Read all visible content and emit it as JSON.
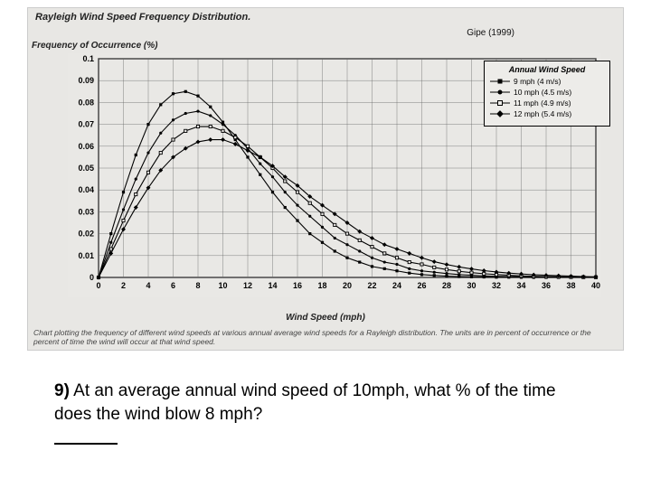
{
  "chart": {
    "type": "line",
    "title": "Rayleigh Wind Speed Frequency Distribution.",
    "citation": "Gipe (1999)",
    "ylabel": "Frequency of Occurrence (%)",
    "xlabel": "Wind Speed (mph)",
    "caption": "Chart plotting the frequency of different wind speeds at various annual average wind speeds for a Rayleigh distribution. The units are in percent of occurrence or the percent of time the wind will occur at that wind speed.",
    "background_color": "#e8e7e4",
    "grid_color": "#666666",
    "axis_color": "#000000",
    "xlim": [
      0,
      40
    ],
    "ylim": [
      0,
      0.1
    ],
    "xtick_step": 2,
    "ytick_step": 0.01,
    "line_width": 1.1,
    "marker_size": 3.2,
    "legend": {
      "title": "Annual Wind Speed",
      "position": "top-right",
      "items": [
        {
          "label": "9 mph (4 m/s)",
          "marker": "filled-square"
        },
        {
          "label": "10 mph (4.5 m/s)",
          "marker": "filled-circle"
        },
        {
          "label": "11 mph (4.9 m/s)",
          "marker": "open-square"
        },
        {
          "label": "12 mph (5.4 m/s)",
          "marker": "filled-diamond"
        }
      ]
    },
    "series": [
      {
        "name": "9 mph (4 m/s)",
        "color": "#000000",
        "marker": "filled-square",
        "x": [
          0,
          1,
          2,
          3,
          4,
          5,
          6,
          7,
          8,
          9,
          10,
          11,
          12,
          13,
          14,
          15,
          16,
          17,
          18,
          19,
          20,
          21,
          22,
          23,
          24,
          25,
          26,
          27,
          28,
          29,
          30,
          31,
          32,
          33,
          34,
          35,
          36,
          37,
          38,
          39,
          40
        ],
        "y": [
          0,
          0.02,
          0.039,
          0.056,
          0.07,
          0.079,
          0.084,
          0.085,
          0.083,
          0.078,
          0.071,
          0.063,
          0.055,
          0.047,
          0.039,
          0.032,
          0.026,
          0.02,
          0.016,
          0.012,
          0.009,
          0.007,
          0.005,
          0.004,
          0.003,
          0.002,
          0.0013,
          0.0009,
          0.0006,
          0.0004,
          0.0003,
          0.0002,
          0.0001,
          0.0001,
          5e-05,
          3e-05,
          2e-05,
          1e-05,
          0,
          0,
          0
        ]
      },
      {
        "name": "10 mph (4.5 m/s)",
        "color": "#000000",
        "marker": "filled-circle",
        "x": [
          0,
          1,
          2,
          3,
          4,
          5,
          6,
          7,
          8,
          9,
          10,
          11,
          12,
          13,
          14,
          15,
          16,
          17,
          18,
          19,
          20,
          21,
          22,
          23,
          24,
          25,
          26,
          27,
          28,
          29,
          30,
          31,
          32,
          33,
          34,
          35,
          36,
          37,
          38,
          39,
          40
        ],
        "y": [
          0,
          0.016,
          0.031,
          0.045,
          0.057,
          0.066,
          0.072,
          0.075,
          0.076,
          0.074,
          0.07,
          0.065,
          0.059,
          0.052,
          0.046,
          0.039,
          0.033,
          0.028,
          0.023,
          0.018,
          0.015,
          0.012,
          0.009,
          0.007,
          0.006,
          0.004,
          0.003,
          0.0024,
          0.0018,
          0.0013,
          0.001,
          0.0007,
          0.0005,
          0.0004,
          0.0003,
          0.0002,
          0.0001,
          0.0001,
          5e-05,
          3e-05,
          2e-05
        ]
      },
      {
        "name": "11 mph (4.9 m/s)",
        "color": "#000000",
        "marker": "open-square",
        "x": [
          0,
          1,
          2,
          3,
          4,
          5,
          6,
          7,
          8,
          9,
          10,
          11,
          12,
          13,
          14,
          15,
          16,
          17,
          18,
          19,
          20,
          21,
          22,
          23,
          24,
          25,
          26,
          27,
          28,
          29,
          30,
          31,
          32,
          33,
          34,
          35,
          36,
          37,
          38,
          39,
          40
        ],
        "y": [
          0,
          0.013,
          0.026,
          0.038,
          0.048,
          0.057,
          0.063,
          0.067,
          0.069,
          0.069,
          0.067,
          0.064,
          0.06,
          0.055,
          0.05,
          0.044,
          0.039,
          0.034,
          0.029,
          0.024,
          0.02,
          0.017,
          0.014,
          0.011,
          0.009,
          0.007,
          0.006,
          0.0046,
          0.0036,
          0.0028,
          0.0022,
          0.0017,
          0.0013,
          0.001,
          0.0007,
          0.0005,
          0.0004,
          0.0003,
          0.0002,
          0.00015,
          0.0001
        ]
      },
      {
        "name": "12 mph (5.4 m/s)",
        "color": "#000000",
        "marker": "filled-diamond",
        "x": [
          0,
          1,
          2,
          3,
          4,
          5,
          6,
          7,
          8,
          9,
          10,
          11,
          12,
          13,
          14,
          15,
          16,
          17,
          18,
          19,
          20,
          21,
          22,
          23,
          24,
          25,
          26,
          27,
          28,
          29,
          30,
          31,
          32,
          33,
          34,
          35,
          36,
          37,
          38,
          39,
          40
        ],
        "y": [
          0,
          0.011,
          0.022,
          0.032,
          0.041,
          0.049,
          0.055,
          0.059,
          0.062,
          0.063,
          0.063,
          0.061,
          0.058,
          0.055,
          0.051,
          0.046,
          0.042,
          0.037,
          0.033,
          0.029,
          0.025,
          0.021,
          0.018,
          0.015,
          0.013,
          0.011,
          0.009,
          0.0072,
          0.0059,
          0.0048,
          0.0039,
          0.0031,
          0.0025,
          0.002,
          0.0016,
          0.0012,
          0.001,
          0.0008,
          0.0006,
          0.0004,
          0.0003
        ]
      }
    ]
  },
  "question": {
    "number": "9)",
    "text": "At an average annual wind speed of 10mph, what % of the time does the wind blow 8 mph?"
  }
}
